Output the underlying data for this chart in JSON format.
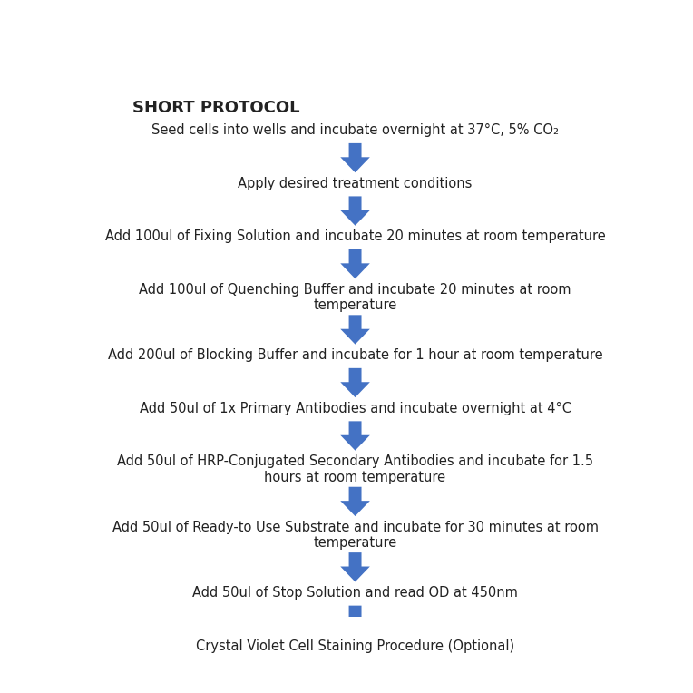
{
  "title": "SHORT PROTOCOL",
  "title_fontsize": 13,
  "title_fontweight": "bold",
  "background_color": "#ffffff",
  "arrow_color": "#4472C4",
  "text_color": "#222222",
  "text_fontsize": 10.5,
  "steps": [
    {
      "text": "Seed cells into wells and incubate overnight at 37°C, 5% CO₂",
      "multiline": false
    },
    {
      "text": "Apply desired treatment conditions",
      "multiline": false
    },
    {
      "text": "Add 100ul of Fixing Solution and incubate 20 minutes at room temperature",
      "multiline": false
    },
    {
      "text": "Add 100ul of Quenching Buffer and incubate 20 minutes at room\ntemperature",
      "multiline": true
    },
    {
      "text": "Add 200ul of Blocking Buffer and incubate for 1 hour at room temperature",
      "multiline": false
    },
    {
      "text": "Add 50ul of 1x Primary Antibodies and incubate overnight at 4°C",
      "multiline": false
    },
    {
      "text": "Add 50ul of HRP-Conjugated Secondary Antibodies and incubate for 1.5\nhours at room temperature",
      "multiline": true
    },
    {
      "text": "Add 50ul of Ready-to Use Substrate and incubate for 30 minutes at room\ntemperature",
      "multiline": true
    },
    {
      "text": "Add 50ul of Stop Solution and read OD at 450nm",
      "multiline": false
    },
    {
      "text": "Crystal Violet Cell Staining Procedure (Optional)",
      "multiline": false
    }
  ],
  "step_heights": [
    1,
    1,
    1,
    2,
    1,
    1,
    2,
    2,
    1,
    1
  ],
  "arrow_color_hex": "#4472C4"
}
